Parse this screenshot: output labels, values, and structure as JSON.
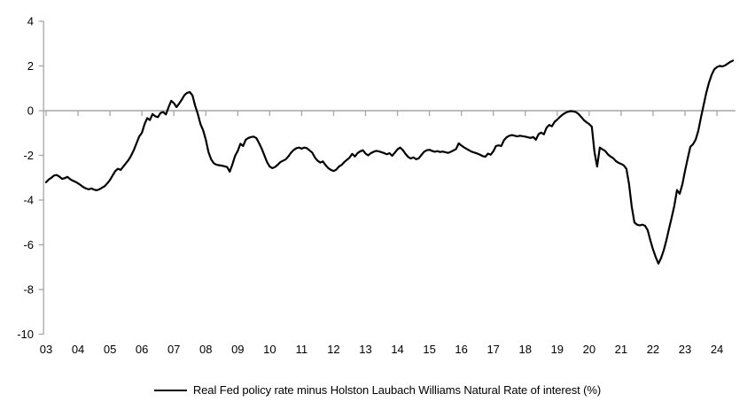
{
  "chart_data": {
    "type": "line",
    "title": "",
    "x_start_year": 2003,
    "points_per_year": 12,
    "x_tick_years": [
      2003,
      2004,
      2005,
      2006,
      2007,
      2008,
      2009,
      2010,
      2011,
      2012,
      2013,
      2014,
      2015,
      2016,
      2017,
      2018,
      2019,
      2020,
      2021,
      2022,
      2023,
      2024
    ],
    "x_tick_labels": [
      "03",
      "04",
      "05",
      "06",
      "07",
      "08",
      "09",
      "10",
      "11",
      "12",
      "13",
      "14",
      "15",
      "16",
      "17",
      "18",
      "19",
      "20",
      "21",
      "22",
      "23",
      "24"
    ],
    "y_ticks": [
      4,
      2,
      0,
      -2,
      -4,
      -6,
      -8,
      -10
    ],
    "ylim": [
      -10,
      4
    ],
    "xlim_years": [
      2003,
      2024.6
    ],
    "grid": "horizontal zero line only",
    "legend_position": "bottom-center",
    "series": [
      {
        "name": "Real Fed policy rate minus Holston Laubach Williams Natural Rate of interest (%)",
        "color": "#000000",
        "values": [
          -3.2,
          -3.08,
          -3.0,
          -2.9,
          -2.88,
          -2.95,
          -3.05,
          -3.02,
          -2.96,
          -3.06,
          -3.13,
          -3.18,
          -3.25,
          -3.33,
          -3.42,
          -3.48,
          -3.52,
          -3.48,
          -3.53,
          -3.56,
          -3.52,
          -3.45,
          -3.38,
          -3.25,
          -3.1,
          -2.9,
          -2.7,
          -2.6,
          -2.65,
          -2.5,
          -2.35,
          -2.2,
          -2.0,
          -1.75,
          -1.45,
          -1.15,
          -0.99,
          -0.6,
          -0.33,
          -0.42,
          -0.15,
          -0.25,
          -0.29,
          -0.1,
          -0.06,
          -0.17,
          0.15,
          0.44,
          0.34,
          0.16,
          0.32,
          0.5,
          0.7,
          0.8,
          0.83,
          0.68,
          0.22,
          -0.15,
          -0.6,
          -0.88,
          -1.3,
          -1.85,
          -2.18,
          -2.35,
          -2.42,
          -2.44,
          -2.46,
          -2.49,
          -2.52,
          -2.73,
          -2.4,
          -2.02,
          -1.8,
          -1.48,
          -1.58,
          -1.3,
          -1.22,
          -1.18,
          -1.16,
          -1.23,
          -1.45,
          -1.7,
          -2.0,
          -2.3,
          -2.5,
          -2.57,
          -2.52,
          -2.42,
          -2.3,
          -2.24,
          -2.18,
          -2.05,
          -1.88,
          -1.76,
          -1.68,
          -1.65,
          -1.7,
          -1.65,
          -1.68,
          -1.78,
          -1.88,
          -2.1,
          -2.24,
          -2.32,
          -2.27,
          -2.44,
          -2.57,
          -2.65,
          -2.7,
          -2.64,
          -2.5,
          -2.43,
          -2.3,
          -2.2,
          -2.1,
          -1.93,
          -2.05,
          -1.9,
          -1.82,
          -1.77,
          -1.92,
          -2.0,
          -1.9,
          -1.84,
          -1.8,
          -1.82,
          -1.86,
          -1.9,
          -1.95,
          -1.9,
          -2.02,
          -1.88,
          -1.73,
          -1.65,
          -1.76,
          -1.93,
          -2.07,
          -2.14,
          -2.09,
          -2.17,
          -2.13,
          -1.98,
          -1.84,
          -1.77,
          -1.75,
          -1.8,
          -1.84,
          -1.81,
          -1.85,
          -1.83,
          -1.86,
          -1.89,
          -1.84,
          -1.78,
          -1.72,
          -1.46,
          -1.56,
          -1.64,
          -1.71,
          -1.78,
          -1.84,
          -1.88,
          -1.92,
          -1.97,
          -2.03,
          -2.06,
          -1.92,
          -1.97,
          -1.82,
          -1.58,
          -1.55,
          -1.58,
          -1.32,
          -1.19,
          -1.12,
          -1.09,
          -1.12,
          -1.15,
          -1.12,
          -1.14,
          -1.16,
          -1.19,
          -1.22,
          -1.18,
          -1.3,
          -1.05,
          -0.98,
          -1.06,
          -0.76,
          -0.64,
          -0.7,
          -0.5,
          -0.4,
          -0.28,
          -0.18,
          -0.1,
          -0.05,
          -0.02,
          -0.03,
          -0.06,
          -0.15,
          -0.28,
          -0.42,
          -0.52,
          -0.6,
          -0.72,
          -1.85,
          -2.5,
          -1.65,
          -1.73,
          -1.8,
          -1.95,
          -2.05,
          -2.12,
          -2.25,
          -2.33,
          -2.38,
          -2.45,
          -2.6,
          -3.3,
          -4.3,
          -5.0,
          -5.1,
          -5.13,
          -5.1,
          -5.15,
          -5.35,
          -5.81,
          -6.21,
          -6.55,
          -6.84,
          -6.6,
          -6.25,
          -5.8,
          -5.28,
          -4.78,
          -4.25,
          -3.55,
          -3.72,
          -3.3,
          -2.7,
          -2.15,
          -1.62,
          -1.5,
          -1.3,
          -0.9,
          -0.3,
          0.25,
          0.8,
          1.25,
          1.6,
          1.85,
          1.95,
          2.0,
          1.98,
          2.02,
          2.1,
          2.18,
          2.24
        ]
      }
    ]
  },
  "legend": {
    "label": "Real Fed policy rate minus Holston Laubach Williams Natural Rate of interest (%)"
  },
  "colors": {
    "background": "#ffffff",
    "line": "#000000",
    "axis": "#a6a6a6",
    "tick": "#a6a6a6",
    "gridline": "#a6a6a6",
    "text": "#000000"
  }
}
